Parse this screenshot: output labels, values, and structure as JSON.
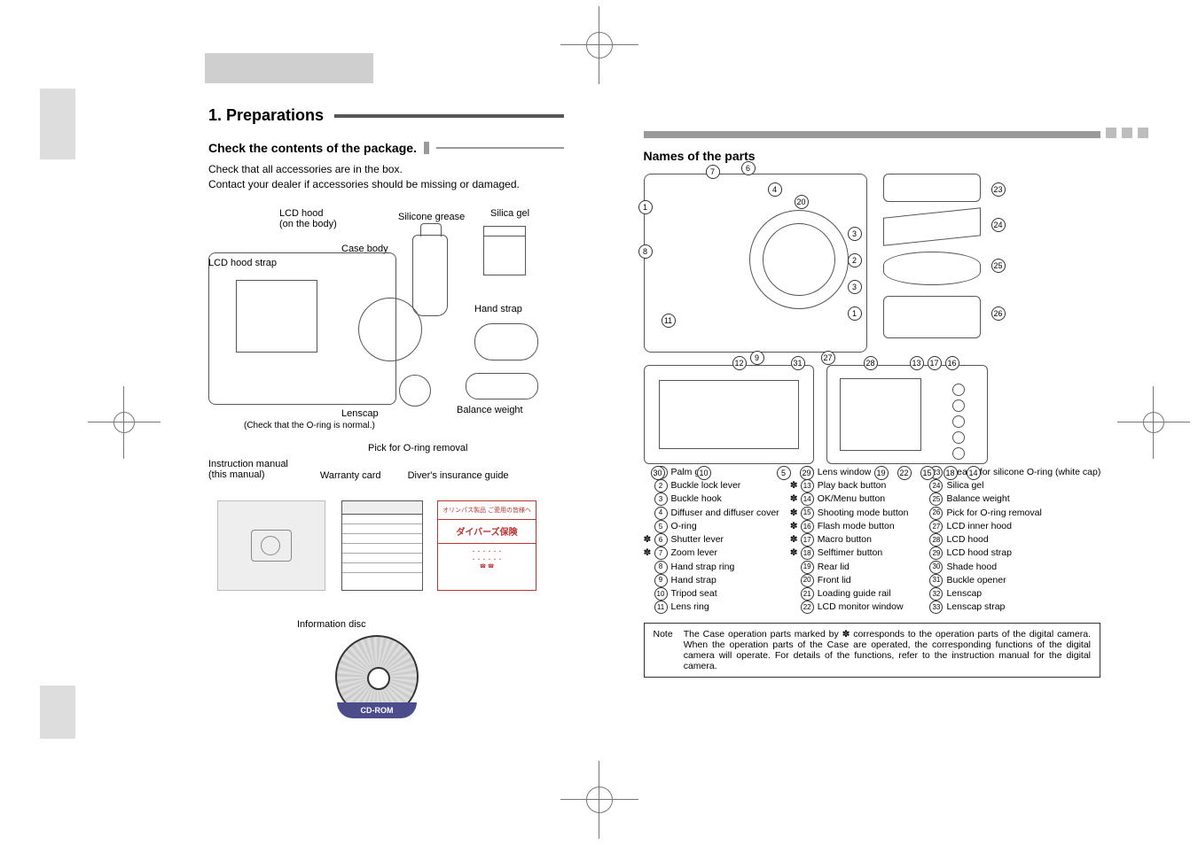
{
  "left": {
    "section_number_title": "1. Preparations",
    "subhead": "Check the contents of the package.",
    "body_line1": "Check that all accessories are in the box.",
    "body_line2": "Contact your dealer if accessories should be missing or damaged.",
    "labels": {
      "lcd_hood": "LCD hood",
      "on_the_body": "(on the body)",
      "lcd_hood_strap": "LCD hood strap",
      "case_body": "Case body",
      "silicone_grease": "Silicone grease",
      "silica_gel": "Silica gel",
      "hand_strap": "Hand strap",
      "lenscap": "Lenscap",
      "oring_normal": "(Check that the O-ring is normal.)",
      "balance_weight": "Balance weight",
      "pick_oring": "Pick for O-ring removal",
      "instruction_manual": "Instruction manual",
      "this_manual": "(this manual)",
      "warranty_card": "Warranty card",
      "diver_guide": "Diver's insurance guide",
      "diver_top": "オリンパス製品 ご愛用の皆様へ",
      "diver_mid": "ダイバーズ保険",
      "info_disc": "Information disc",
      "cdrom": "CD-ROM"
    }
  },
  "right": {
    "title": "Names of the parts",
    "parts_col1": [
      {
        "n": "1",
        "mark": "",
        "t": "Palm grip"
      },
      {
        "n": "2",
        "mark": "",
        "t": "Buckle lock lever"
      },
      {
        "n": "3",
        "mark": "",
        "t": "Buckle hook"
      },
      {
        "n": "4",
        "mark": "",
        "t": "Diffuser and diffuser cover"
      },
      {
        "n": "5",
        "mark": "",
        "t": "O-ring"
      },
      {
        "n": "6",
        "mark": "✽",
        "t": "Shutter lever"
      },
      {
        "n": "7",
        "mark": "✽",
        "t": "Zoom lever"
      },
      {
        "n": "8",
        "mark": "",
        "t": "Hand strap ring"
      },
      {
        "n": "9",
        "mark": "",
        "t": "Hand strap"
      },
      {
        "n": "10",
        "mark": "",
        "t": "Tripod seat"
      },
      {
        "n": "11",
        "mark": "",
        "t": "Lens ring"
      }
    ],
    "parts_col2": [
      {
        "n": "12",
        "mark": "",
        "t": "Lens window"
      },
      {
        "n": "13",
        "mark": "✽",
        "t": "Play back button"
      },
      {
        "n": "14",
        "mark": "✽",
        "t": "OK/Menu button"
      },
      {
        "n": "15",
        "mark": "✽",
        "t": "Shooting mode button"
      },
      {
        "n": "16",
        "mark": "✽",
        "t": "Flash mode button"
      },
      {
        "n": "17",
        "mark": "✽",
        "t": "Macro button"
      },
      {
        "n": "18",
        "mark": "✽",
        "t": "Selftimer button"
      },
      {
        "n": "19",
        "mark": "",
        "t": "Rear lid"
      },
      {
        "n": "20",
        "mark": "",
        "t": "Front lid"
      },
      {
        "n": "21",
        "mark": "",
        "t": "Loading guide rail"
      },
      {
        "n": "22",
        "mark": "",
        "t": "LCD monitor window"
      }
    ],
    "parts_col3": [
      {
        "n": "23",
        "mark": "",
        "t": "Grease for silicone O-ring (white cap)"
      },
      {
        "n": "24",
        "mark": "",
        "t": "Silica gel"
      },
      {
        "n": "25",
        "mark": "",
        "t": "Balance weight"
      },
      {
        "n": "26",
        "mark": "",
        "t": "Pick for O-ring removal"
      },
      {
        "n": "27",
        "mark": "",
        "t": "LCD inner hood"
      },
      {
        "n": "28",
        "mark": "",
        "t": "LCD hood"
      },
      {
        "n": "29",
        "mark": "",
        "t": "LCD hood strap"
      },
      {
        "n": "30",
        "mark": "",
        "t": "Shade hood"
      },
      {
        "n": "31",
        "mark": "",
        "t": "Buckle opener"
      },
      {
        "n": "32",
        "mark": "",
        "t": "Lenscap"
      },
      {
        "n": "33",
        "mark": "",
        "t": "Lenscap strap"
      }
    ],
    "note_label": "Note",
    "note_text": "The Case operation parts marked by ✽ corresponds to the operation parts of the digital camera. When the operation parts of the Case are operated, the corresponding functions of the digital camera will operate. For details of the functions, refer to the instruction manual for the digital camera.",
    "callouts_front": [
      "1",
      "2",
      "3",
      "4",
      "5",
      "6",
      "7",
      "8",
      "9",
      "10",
      "11",
      "12",
      "20",
      "23",
      "24",
      "25",
      "26"
    ],
    "callouts_rear": [
      "5",
      "13",
      "14",
      "15",
      "16",
      "17",
      "18",
      "19",
      "21",
      "22",
      "27",
      "28",
      "29",
      "30"
    ]
  },
  "colors": {
    "gray_bar": "#b8b8b8",
    "dark_bar": "#575757",
    "diver_red": "#b33333",
    "cd_purple": "#4c4c8c"
  }
}
